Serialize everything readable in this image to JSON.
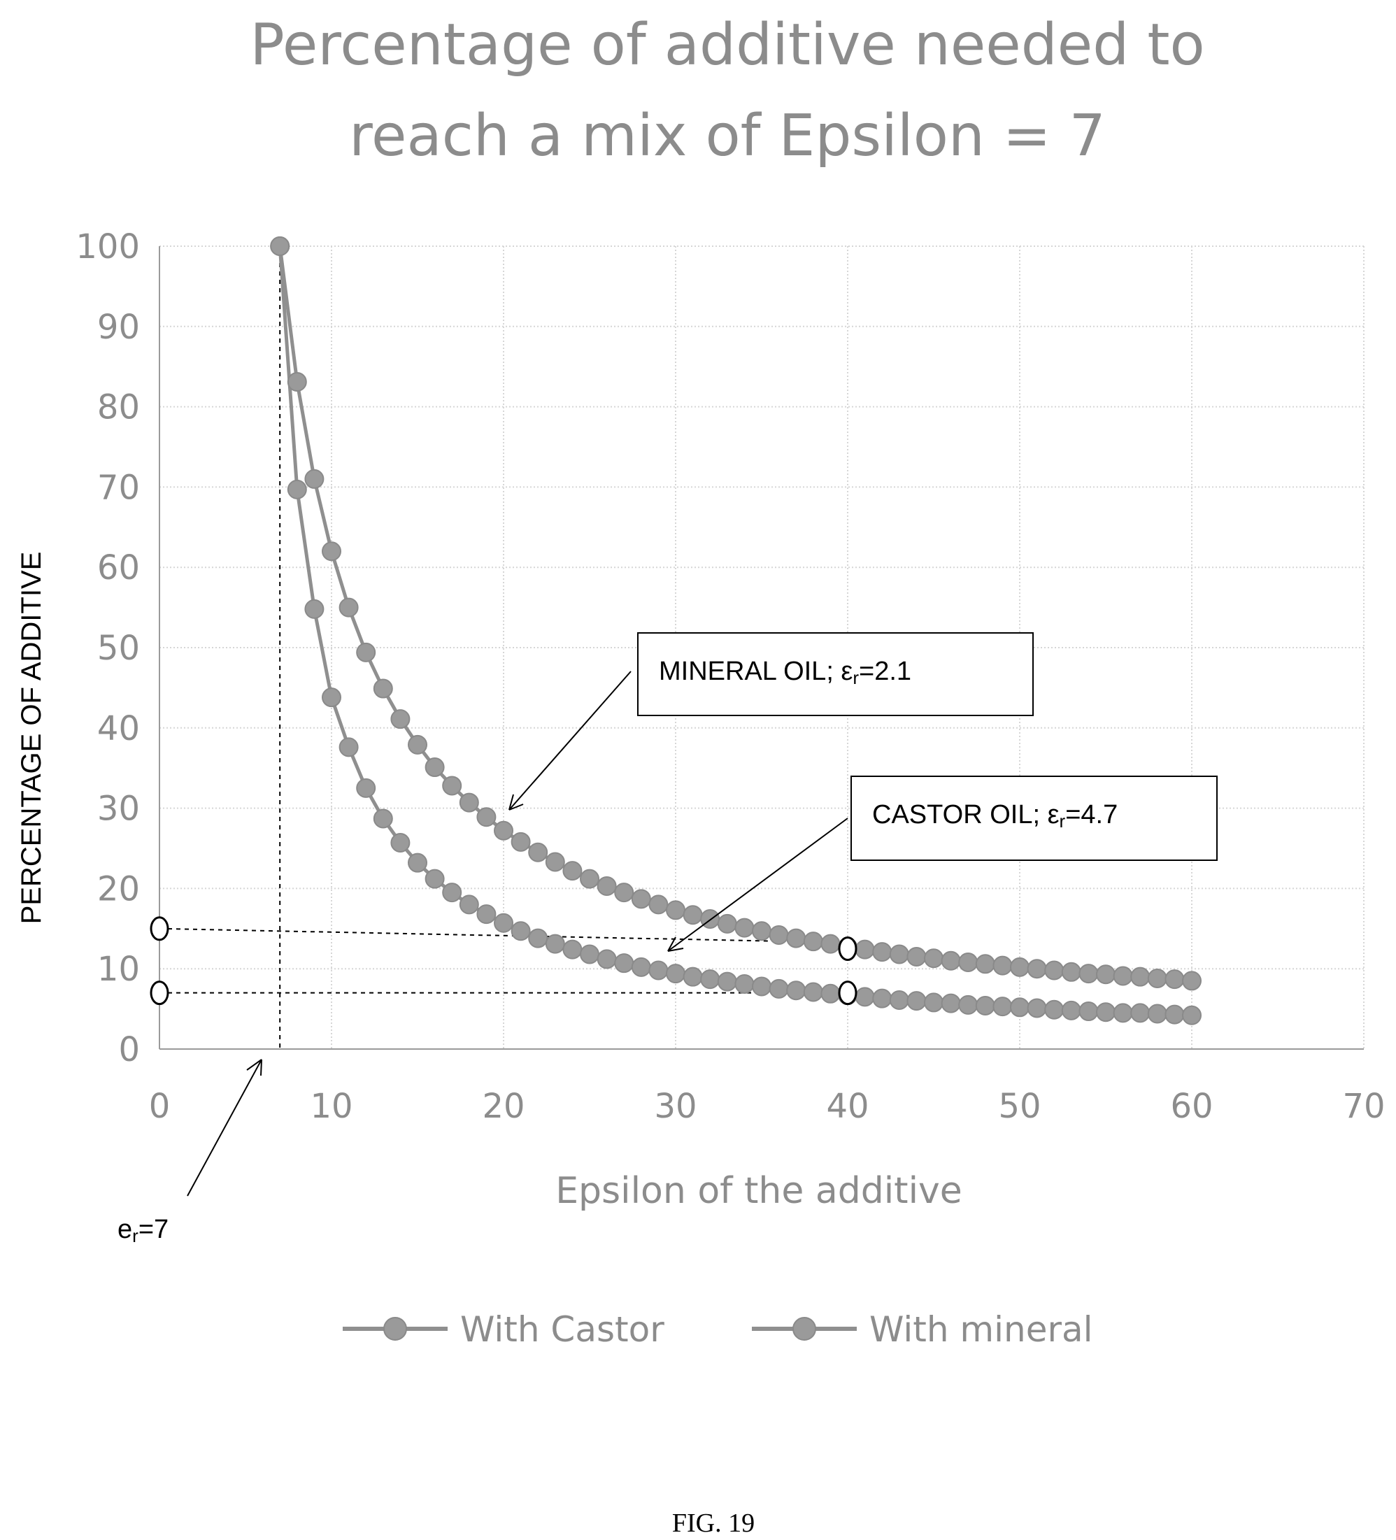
{
  "chart_data": {
    "type": "line",
    "title_line1": "Percentage of additive needed to",
    "title_line2": "reach a mix of Epsilon = 7",
    "xlabel": "Epsilon of the additive",
    "ylabel": "PERCENTAGE OF ADDITIVE",
    "xlim": [
      0,
      70
    ],
    "ylim": [
      0,
      100
    ],
    "x_ticks": [
      "0",
      "10",
      "20",
      "30",
      "40",
      "50",
      "60",
      "70"
    ],
    "y_ticks": [
      "0",
      "10",
      "20",
      "30",
      "40",
      "50",
      "60",
      "70",
      "80",
      "90",
      "100"
    ],
    "grid": true,
    "legend_position": "bottom",
    "series": [
      {
        "name": "With Castor",
        "x": [
          7,
          8,
          9,
          10,
          11,
          12,
          13,
          14,
          15,
          16,
          17,
          18,
          19,
          20,
          21,
          22,
          23,
          24,
          25,
          26,
          27,
          28,
          29,
          30,
          31,
          32,
          33,
          34,
          35,
          36,
          37,
          38,
          39,
          40,
          41,
          42,
          43,
          44,
          45,
          46,
          47,
          48,
          49,
          50,
          51,
          52,
          53,
          54,
          55,
          56,
          57,
          58,
          59,
          60
        ],
        "y": [
          100,
          69.7,
          54.8,
          43.8,
          37.6,
          32.5,
          28.7,
          25.7,
          23.2,
          21.2,
          19.5,
          18.0,
          16.8,
          15.7,
          14.7,
          13.8,
          13.1,
          12.4,
          11.8,
          11.2,
          10.7,
          10.2,
          9.8,
          9.4,
          9.0,
          8.7,
          8.4,
          8.1,
          7.8,
          7.5,
          7.3,
          7.1,
          6.9,
          6.7,
          6.5,
          6.3,
          6.1,
          6.0,
          5.8,
          5.7,
          5.5,
          5.4,
          5.3,
          5.2,
          5.1,
          4.9,
          4.8,
          4.7,
          4.6,
          4.5,
          4.5,
          4.4,
          4.3,
          4.2
        ]
      },
      {
        "name": "With mineral",
        "x": [
          7,
          8,
          9,
          10,
          11,
          12,
          13,
          14,
          15,
          16,
          17,
          18,
          19,
          20,
          21,
          22,
          23,
          24,
          25,
          26,
          27,
          28,
          29,
          30,
          31,
          32,
          33,
          34,
          35,
          36,
          37,
          38,
          39,
          40,
          41,
          42,
          43,
          44,
          45,
          46,
          47,
          48,
          49,
          50,
          51,
          52,
          53,
          54,
          55,
          56,
          57,
          58,
          59,
          60
        ],
        "y": [
          100,
          83.1,
          71.0,
          62.0,
          55.0,
          49.4,
          44.9,
          41.1,
          37.9,
          35.1,
          32.8,
          30.7,
          28.9,
          27.2,
          25.8,
          24.5,
          23.3,
          22.2,
          21.2,
          20.3,
          19.5,
          18.7,
          18.0,
          17.3,
          16.7,
          16.2,
          15.6,
          15.1,
          14.7,
          14.2,
          13.8,
          13.4,
          13.1,
          12.7,
          12.4,
          12.1,
          11.8,
          11.5,
          11.3,
          11.0,
          10.8,
          10.6,
          10.4,
          10.2,
          10.0,
          9.8,
          9.6,
          9.4,
          9.3,
          9.1,
          9.0,
          8.8,
          8.7,
          8.5
        ]
      }
    ],
    "annotations": {
      "mineral_prefix": "MINERAL OIL; ε",
      "mineral_sub": "r",
      "mineral_suffix": "=2.1",
      "castor_prefix": "CASTOR OIL; ε",
      "castor_sub": "r",
      "castor_suffix": "=4.7",
      "er_prefix": "e",
      "er_sub": "r",
      "er_suffix": "=7"
    },
    "reference_lines": {
      "vertical_x": 7,
      "mineral_level": 15,
      "castor_level": 7,
      "marker_x": 40
    }
  },
  "caption": "FIG. 19"
}
